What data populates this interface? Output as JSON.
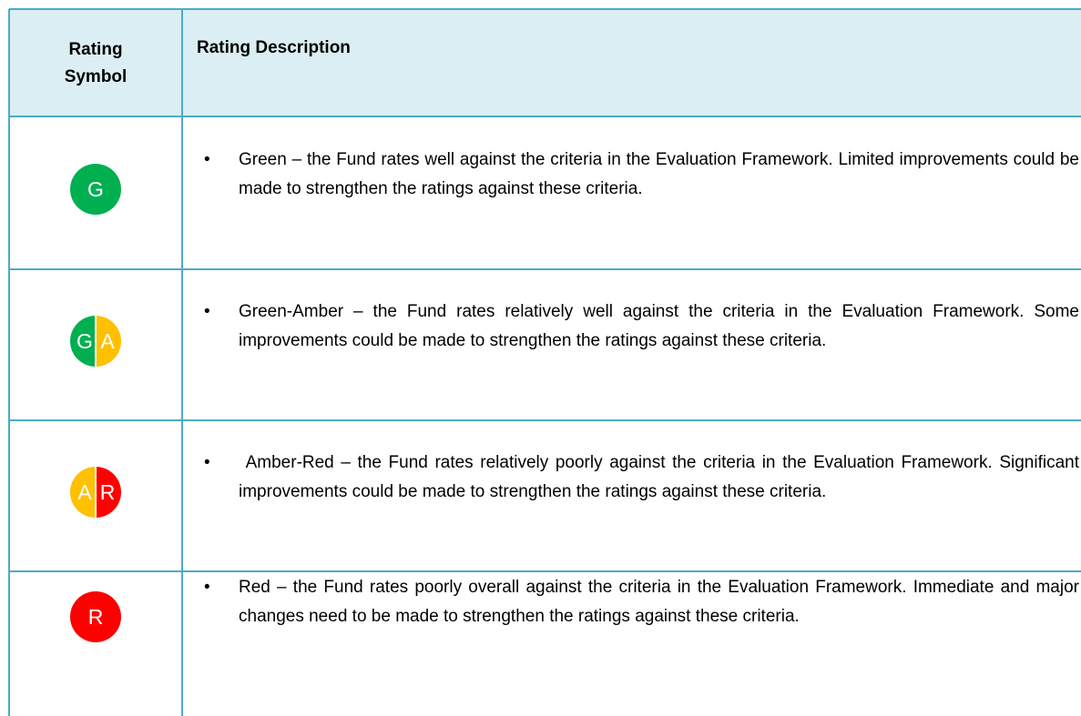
{
  "table": {
    "header": [
      "Rating Symbol",
      "Rating Description"
    ],
    "rows": [
      {
        "symbol": [
          "G"
        ],
        "colors": [
          "#00b050"
        ],
        "text": "Green – the Fund rates well against the criteria in the Evaluation Framework. Limited improvements could be made to strengthen the ratings against these criteria."
      },
      {
        "symbol": [
          "G",
          "A"
        ],
        "colors": [
          "#00b050",
          "#ffc000"
        ],
        "text": "Green-Amber – the Fund rates relatively well against the criteria in the Evaluation Framework. Some improvements could be made to strengthen the ratings against these criteria."
      },
      {
        "symbol": [
          "A",
          "R"
        ],
        "colors": [
          "#ffc000",
          "#ff0000"
        ],
        "text": " Amber-Red – the Fund rates relatively poorly against the criteria in the Evaluation Framework. Significant improvements could be made to strengthen the ratings against these criteria."
      },
      {
        "symbol": [
          "R"
        ],
        "colors": [
          "#ff0000"
        ],
        "text": "Red – the Fund rates poorly overall against the criteria in the Evaluation Framework. Immediate and major changes need to be made to strengthen the ratings against these criteria."
      }
    ]
  }
}
